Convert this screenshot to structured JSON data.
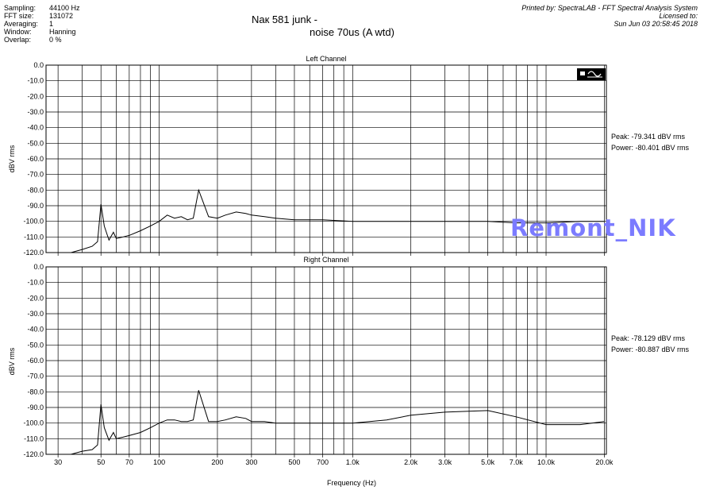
{
  "header": {
    "fields": [
      {
        "label": "Sampling:",
        "value": "44100 Hz"
      },
      {
        "label": "FFT size:",
        "value": "131072"
      },
      {
        "label": "Averaging:",
        "value": "1"
      },
      {
        "label": "Window:",
        "value": "Hanning"
      },
      {
        "label": "Overlap:",
        "value": "0 %"
      }
    ],
    "printed_by": "Printed by: SpectraLAB - FFT Spectral Analysis System",
    "licensed": "Licensed to:",
    "date": "Sun Jun 03 20:58:45 2018"
  },
  "title_line1": "Naк 581 junk -",
  "title_line2": "noise 70us (A wtd)",
  "watermark": "Remont_NIK",
  "xlabel": "Frequency (Hz)",
  "ylabel": "dBV rms",
  "chart_data": [
    {
      "type": "line",
      "title": "Left Channel",
      "xlabel": "Frequency (Hz)",
      "ylabel": "dBV rms",
      "xscale": "log",
      "xlim": [
        26,
        20500
      ],
      "ylim": [
        -120,
        0
      ],
      "y_ticks": [
        "0.0",
        "-10.0",
        "-20.0",
        "-30.0",
        "-40.0",
        "-50.0",
        "-60.0",
        "-70.0",
        "-80.0",
        "-90.0",
        "-100.0",
        "-110.0",
        "-120.0"
      ],
      "x_ticks": [
        30,
        50,
        70,
        100,
        200,
        300,
        500,
        700,
        1000,
        2000,
        3000,
        5000,
        7000,
        10000,
        20000
      ],
      "x_tick_labels": [
        "30",
        "50",
        "70",
        "100",
        "200",
        "300",
        "500",
        "700",
        "1.0k",
        "2.0k",
        "3.0k",
        "5.0k",
        "7.0k",
        "10.0k",
        "20.0k"
      ],
      "peak": "Peak: -79.341 dBV rms",
      "power": "Power: -80.401 dBV rms",
      "series": [
        {
          "x": [
            30,
            35,
            40,
            45,
            48,
            50,
            52,
            55,
            58,
            60,
            65,
            70,
            80,
            90,
            100,
            110,
            120,
            130,
            140,
            150,
            160,
            180,
            200,
            220,
            250,
            280,
            300,
            350,
            400,
            500,
            700,
            1000,
            1500,
            2000,
            3000,
            5000,
            7000,
            10000,
            15000,
            20000
          ],
          "y": [
            -120,
            -120,
            -118,
            -116,
            -113,
            -89,
            -103,
            -112,
            -107,
            -111,
            -110,
            -109,
            -106,
            -103,
            -100,
            -96,
            -98,
            -97,
            -99,
            -98,
            -80,
            -97,
            -98,
            -96,
            -94,
            -95,
            -96,
            -97,
            -98,
            -99,
            -99,
            -100,
            -100,
            -100,
            -100,
            -100,
            -101,
            -101,
            -100,
            -100
          ]
        }
      ]
    },
    {
      "type": "line",
      "title": "Right Channel",
      "xlabel": "Frequency (Hz)",
      "ylabel": "dBV rms",
      "xscale": "log",
      "xlim": [
        26,
        20500
      ],
      "ylim": [
        -120,
        0
      ],
      "y_ticks": [
        "0.0",
        "-10.0",
        "-20.0",
        "-30.0",
        "-40.0",
        "-50.0",
        "-60.0",
        "-70.0",
        "-80.0",
        "-90.0",
        "-100.0",
        "-110.0",
        "-120.0"
      ],
      "x_ticks": [
        30,
        50,
        70,
        100,
        200,
        300,
        500,
        700,
        1000,
        2000,
        3000,
        5000,
        7000,
        10000,
        20000
      ],
      "x_tick_labels": [
        "30",
        "50",
        "70",
        "100",
        "200",
        "300",
        "500",
        "700",
        "1.0k",
        "2.0k",
        "3.0k",
        "5.0k",
        "7.0k",
        "10.0k",
        "20.0k"
      ],
      "peak": "Peak: -78.129 dBV rms",
      "power": "Power: -80.887 dBV rms",
      "series": [
        {
          "x": [
            30,
            35,
            40,
            45,
            48,
            50,
            52,
            55,
            58,
            60,
            65,
            70,
            80,
            90,
            100,
            110,
            120,
            130,
            140,
            150,
            160,
            180,
            200,
            220,
            250,
            280,
            300,
            350,
            400,
            500,
            700,
            1000,
            1500,
            2000,
            3000,
            5000,
            7000,
            10000,
            15000,
            20000
          ],
          "y": [
            -120,
            -120,
            -118,
            -117,
            -114,
            -88,
            -103,
            -111,
            -106,
            -110,
            -109,
            -108,
            -106,
            -103,
            -100,
            -98,
            -98,
            -99,
            -99,
            -98,
            -79,
            -99,
            -99,
            -98,
            -96,
            -97,
            -99,
            -99,
            -100,
            -100,
            -100,
            -100,
            -98,
            -95,
            -93,
            -92,
            -96,
            -101,
            -101,
            -99
          ]
        }
      ]
    }
  ]
}
